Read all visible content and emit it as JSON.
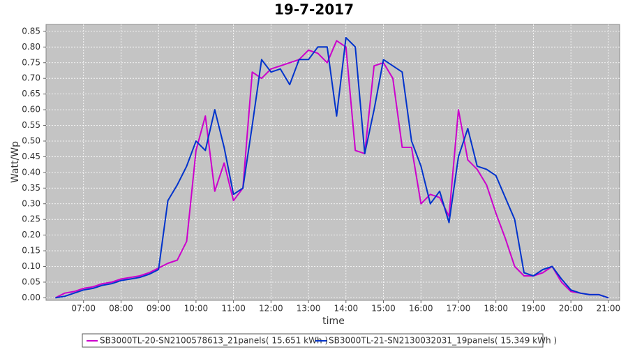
{
  "chart_data": {
    "type": "line",
    "title": "19-7-2017",
    "x_label": "time",
    "y_label": "Watt/Wp",
    "x": [
      6.25,
      6.5,
      6.75,
      7.0,
      7.25,
      7.5,
      7.75,
      8.0,
      8.25,
      8.5,
      8.75,
      9.0,
      9.25,
      9.5,
      9.75,
      10.0,
      10.25,
      10.5,
      10.75,
      11.0,
      11.25,
      11.5,
      11.75,
      12.0,
      12.25,
      12.5,
      12.75,
      13.0,
      13.25,
      13.5,
      13.75,
      14.0,
      14.25,
      14.5,
      14.75,
      15.0,
      15.25,
      15.5,
      15.75,
      16.0,
      16.25,
      16.5,
      16.75,
      17.0,
      17.25,
      17.5,
      17.75,
      18.0,
      18.25,
      18.5,
      18.75,
      19.0,
      19.25,
      19.5,
      19.75,
      20.0,
      20.25,
      20.5,
      20.75,
      21.0
    ],
    "series": [
      {
        "name": "SB3000TL-20-SN2100578613_21panels( 15.651 kWh )",
        "color": "#cc00cc",
        "values": [
          0.0,
          0.015,
          0.02,
          0.03,
          0.035,
          0.045,
          0.05,
          0.06,
          0.065,
          0.07,
          0.08,
          0.095,
          0.11,
          0.12,
          0.18,
          0.47,
          0.58,
          0.34,
          0.43,
          0.31,
          0.35,
          0.72,
          0.7,
          0.73,
          0.74,
          0.75,
          0.76,
          0.79,
          0.78,
          0.75,
          0.82,
          0.8,
          0.47,
          0.46,
          0.74,
          0.75,
          0.7,
          0.48,
          0.48,
          0.3,
          0.33,
          0.32,
          0.26,
          0.6,
          0.44,
          0.41,
          0.36,
          0.27,
          0.19,
          0.1,
          0.07,
          0.07,
          0.08,
          0.1,
          0.05,
          0.02,
          0.015,
          0.01,
          0.01,
          0.0
        ]
      },
      {
        "name": "SB3000TL-21-SN2130032031_19panels( 15.349 kWh )",
        "color": "#0033cc",
        "values": [
          0.0,
          0.005,
          0.015,
          0.025,
          0.03,
          0.04,
          0.045,
          0.055,
          0.06,
          0.065,
          0.075,
          0.09,
          0.31,
          0.36,
          0.42,
          0.5,
          0.47,
          0.6,
          0.48,
          0.33,
          0.35,
          0.55,
          0.76,
          0.72,
          0.73,
          0.68,
          0.76,
          0.76,
          0.8,
          0.8,
          0.58,
          0.83,
          0.8,
          0.46,
          0.6,
          0.76,
          0.74,
          0.72,
          0.5,
          0.42,
          0.3,
          0.34,
          0.24,
          0.45,
          0.54,
          0.42,
          0.41,
          0.39,
          0.32,
          0.25,
          0.08,
          0.07,
          0.09,
          0.1,
          0.06,
          0.025,
          0.015,
          0.01,
          0.01,
          0.0
        ]
      }
    ],
    "xlim": [
      6.0,
      21.3
    ],
    "xticks": [
      {
        "value": 7,
        "label": "07:00"
      },
      {
        "value": 8,
        "label": "08:00"
      },
      {
        "value": 9,
        "label": "09:00"
      },
      {
        "value": 10,
        "label": "10:00"
      },
      {
        "value": 11,
        "label": "11:00"
      },
      {
        "value": 12,
        "label": "12:00"
      },
      {
        "value": 13,
        "label": "13:00"
      },
      {
        "value": 14,
        "label": "14:00"
      },
      {
        "value": 15,
        "label": "15:00"
      },
      {
        "value": 16,
        "label": "16:00"
      },
      {
        "value": 17,
        "label": "17:00"
      },
      {
        "value": 18,
        "label": "18:00"
      },
      {
        "value": 19,
        "label": "19:00"
      },
      {
        "value": 20,
        "label": "20:00"
      },
      {
        "value": 21,
        "label": "21:00"
      }
    ],
    "ylim": [
      -0.008,
      0.872
    ],
    "yticks": [
      {
        "value": 0,
        "label": "0.00"
      },
      {
        "value": 0.05,
        "label": "0.05"
      },
      {
        "value": 0.1,
        "label": "0.10"
      },
      {
        "value": 0.15,
        "label": "0.15"
      },
      {
        "value": 0.2,
        "label": "0.20"
      },
      {
        "value": 0.25,
        "label": "0.25"
      },
      {
        "value": 0.3,
        "label": "0.30"
      },
      {
        "value": 0.35,
        "label": "0.35"
      },
      {
        "value": 0.4,
        "label": "0.40"
      },
      {
        "value": 0.45,
        "label": "0.45"
      },
      {
        "value": 0.5,
        "label": "0.50"
      },
      {
        "value": 0.55,
        "label": "0.55"
      },
      {
        "value": 0.6,
        "label": "0.60"
      },
      {
        "value": 0.65,
        "label": "0.65"
      },
      {
        "value": 0.7,
        "label": "0.70"
      },
      {
        "value": 0.75,
        "label": "0.75"
      },
      {
        "value": 0.8,
        "label": "0.80"
      },
      {
        "value": 0.85,
        "label": "0.85"
      }
    ],
    "grid": true,
    "legend": "bottom"
  }
}
